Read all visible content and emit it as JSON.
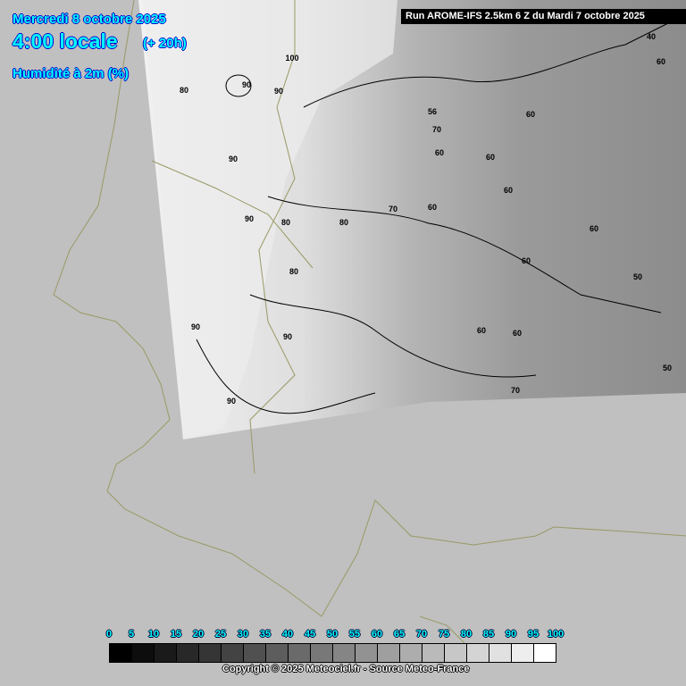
{
  "header": {
    "date": "Mercredi 8 octobre 2025",
    "time": "4:00 locale",
    "offset": "(+ 20h)",
    "parameter": "Humidité à 2m (%)"
  },
  "run_info": "Run AROME-IFS 2.5km 6 Z du Mardi 7 octobre 2025",
  "colors": {
    "background": "#c0c0c0",
    "header_text": "#00ffff",
    "coastline": "#999966"
  },
  "contour_labels": [
    "100",
    "90",
    "80",
    "90",
    "90",
    "56",
    "70",
    "60",
    "60",
    "60",
    "40",
    "60",
    "60",
    "60",
    "90",
    "80",
    "80",
    "70",
    "60",
    "80",
    "60",
    "50",
    "90",
    "90",
    "60",
    "60",
    "50",
    "90",
    "70"
  ],
  "legend": {
    "ticks": [
      "0",
      "5",
      "10",
      "15",
      "20",
      "25",
      "30",
      "35",
      "40",
      "45",
      "50",
      "55",
      "60",
      "65",
      "70",
      "75",
      "80",
      "85",
      "90",
      "95",
      "100"
    ],
    "colors": [
      "#000000",
      "#0d0d0d",
      "#1a1a1a",
      "#282828",
      "#353535",
      "#434343",
      "#505050",
      "#5d5d5d",
      "#6a6a6a",
      "#787878",
      "#858585",
      "#929292",
      "#9f9f9f",
      "#adadad",
      "#bababa",
      "#c7c7c7",
      "#d4d4d4",
      "#e1e1e1",
      "#eeeeee",
      "#ffffff"
    ]
  },
  "copyright": "Copyright © 2025 Meteociel.fr - Source Meteo-France"
}
